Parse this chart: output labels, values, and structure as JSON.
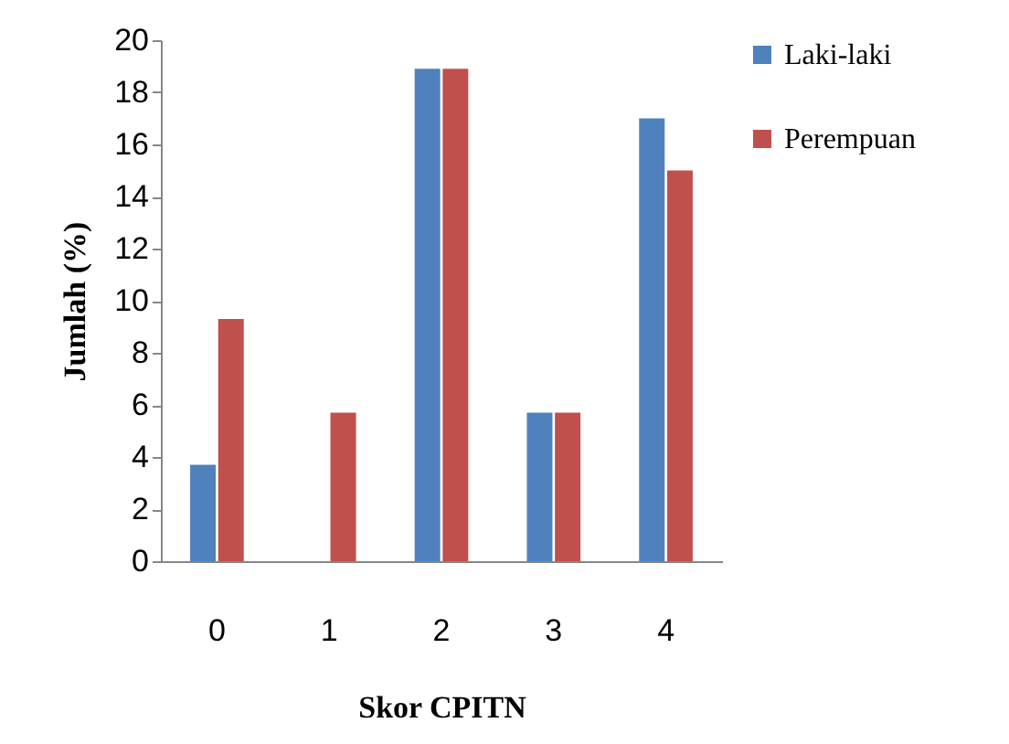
{
  "chart_data": {
    "type": "bar",
    "xlabel": "Skor CPITN",
    "ylabel": "Jumlah (%)",
    "categories": [
      "0",
      "1",
      "2",
      "3",
      "4"
    ],
    "series": [
      {
        "name": "Laki-laki",
        "color": "#4f81bd",
        "values": [
          3.7,
          0,
          18.9,
          5.7,
          17
        ]
      },
      {
        "name": "Perempuan",
        "color": "#c0504d",
        "values": [
          9.3,
          5.7,
          18.9,
          5.7,
          15
        ]
      }
    ],
    "ylim": [
      0,
      20
    ],
    "yticks": [
      0,
      2,
      4,
      6,
      8,
      10,
      12,
      14,
      16,
      18,
      20
    ],
    "legend": "right"
  }
}
